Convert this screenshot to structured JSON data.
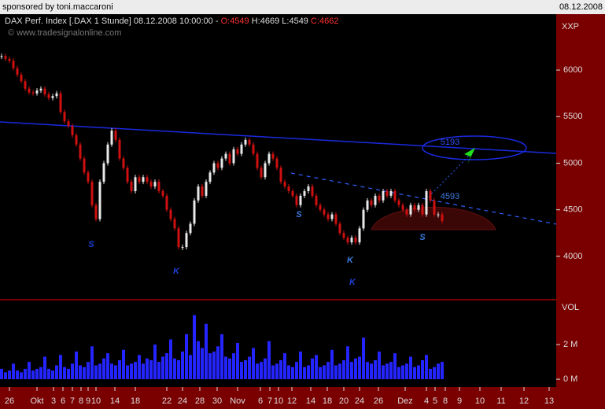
{
  "header": {
    "sponsor": "sponsored by toni.maccaroni",
    "date": "08.12.2008"
  },
  "chart_data": {
    "type": "candlestick",
    "title": "DAX Perf. Index [.DAX  1 Stunde] 08.12.2008 10:00:00 -",
    "ohlc": [
      "O:4549",
      "H:4669",
      "L:4549",
      "C:4662"
    ],
    "copyright": "© www.tradesignalonline.com",
    "currency": "XXP",
    "values": [
      6150,
      6120,
      6100,
      6020,
      5950,
      5880,
      5800,
      5760,
      5750,
      5780,
      5800,
      5740,
      5700,
      5720,
      5750,
      5550,
      5450,
      5400,
      5300,
      5200,
      5050,
      4900,
      4800,
      4550,
      4400,
      4800,
      5000,
      5200,
      5350,
      5250,
      5050,
      4950,
      4800,
      4700,
      4850,
      4800,
      4850,
      4800,
      4750,
      4800,
      4700,
      4650,
      4500,
      4400,
      4300,
      4100,
      4100,
      4250,
      4350,
      4600,
      4750,
      4650,
      4800,
      4900,
      5000,
      4950,
      5050,
      5100,
      5000,
      5150,
      5100,
      5200,
      5250,
      5200,
      5100,
      4950,
      4850,
      5000,
      5100,
      5050,
      4950,
      4800,
      4750,
      4700,
      4650,
      4550,
      4650,
      4700,
      4750,
      4650,
      4550,
      4500,
      4450,
      4400,
      4450,
      4350,
      4250,
      4200,
      4150,
      4200,
      4150,
      4300,
      4500,
      4600,
      4550,
      4650,
      4600,
      4700,
      4650,
      4700,
      4600,
      4550,
      4500,
      4450,
      4550,
      4500,
      4550,
      4450,
      4700,
      4600,
      4450,
      4450,
      4380
    ],
    "up_color": "#e8e8e8",
    "down_color": "#d01010",
    "ylim": [
      3560,
      6600
    ],
    "yticks": [
      4000,
      4500,
      5000,
      5500,
      6000
    ],
    "xlim": [
      0,
      141
    ],
    "xticks": [
      {
        "value": 2,
        "label": "26"
      },
      {
        "value": 9,
        "label": "Okt"
      },
      {
        "value": 13.2,
        "label": "3"
      },
      {
        "value": 15.6,
        "label": "6"
      },
      {
        "value": 18,
        "label": "7"
      },
      {
        "value": 20.2,
        "label": "8"
      },
      {
        "value": 22,
        "label": "9"
      },
      {
        "value": 24,
        "label": "10"
      },
      {
        "value": 28.8,
        "label": "14"
      },
      {
        "value": 34,
        "label": "18"
      },
      {
        "value": 42,
        "label": "22"
      },
      {
        "value": 46,
        "label": "24"
      },
      {
        "value": 50.4,
        "label": "28"
      },
      {
        "value": 54.8,
        "label": "30"
      },
      {
        "value": 60,
        "label": "Nov"
      },
      {
        "value": 65.8,
        "label": "6"
      },
      {
        "value": 68.2,
        "label": "7"
      },
      {
        "value": 70.4,
        "label": "10"
      },
      {
        "value": 73.8,
        "label": "12"
      },
      {
        "value": 78.6,
        "label": "14"
      },
      {
        "value": 82.8,
        "label": "18"
      },
      {
        "value": 87,
        "label": "20"
      },
      {
        "value": 91,
        "label": "24"
      },
      {
        "value": 95.8,
        "label": "26"
      },
      {
        "value": 102.6,
        "label": "Dez"
      },
      {
        "value": 108,
        "label": "4"
      },
      {
        "value": 110.2,
        "label": "5"
      },
      {
        "value": 112.8,
        "label": "8"
      },
      {
        "value": 116.4,
        "label": "9"
      },
      {
        "value": 121.6,
        "label": "10"
      },
      {
        "value": 127,
        "label": "11"
      },
      {
        "value": 132.8,
        "label": "12"
      },
      {
        "value": 139.2,
        "label": "13"
      }
    ],
    "annotations": [
      "S",
      "K",
      "S",
      "K",
      "K",
      "S",
      "5193",
      "4593"
    ],
    "volume": {
      "label": "VOL",
      "color": "#2424ff",
      "values": [
        0.6,
        0.4,
        0.5,
        0.9,
        0.5,
        0.4,
        0.6,
        1.0,
        0.5,
        0.6,
        0.7,
        1.3,
        0.6,
        0.5,
        0.8,
        1.4,
        0.7,
        0.6,
        0.9,
        1.6,
        0.8,
        0.7,
        1.0,
        1.9,
        0.8,
        0.9,
        1.2,
        1.5,
        0.9,
        0.8,
        1.1,
        1.7,
        0.8,
        0.9,
        1.0,
        1.4,
        0.9,
        1.2,
        1.1,
        2.0,
        1.0,
        1.3,
        1.5,
        2.3,
        1.2,
        1.1,
        1.6,
        2.6,
        1.4,
        3.7,
        2.2,
        1.8,
        3.2,
        1.5,
        1.6,
        1.9,
        2.6,
        1.3,
        1.2,
        1.5,
        2.1,
        1.0,
        1.1,
        1.3,
        1.8,
        0.9,
        1.0,
        1.2,
        2.2,
        0.8,
        0.9,
        1.1,
        1.5,
        0.8,
        0.7,
        1.0,
        1.6,
        0.7,
        0.8,
        1.2,
        1.4,
        0.7,
        0.8,
        1.0,
        1.7,
        0.8,
        0.9,
        1.1,
        1.9,
        1.0,
        1.2,
        1.3,
        2.4,
        1.0,
        0.9,
        1.1,
        1.6,
        0.8,
        0.9,
        1.0,
        1.5,
        0.7,
        0.8,
        0.9,
        1.3,
        0.7,
        0.8,
        1.1,
        1.4,
        0.6,
        0.7,
        0.9,
        1.0
      ],
      "ylim": [
        -0.45,
        4.55
      ],
      "yticks": [
        {
          "value": 0,
          "label": "0 M"
        },
        {
          "value": 2,
          "label": "2 M"
        }
      ]
    }
  }
}
